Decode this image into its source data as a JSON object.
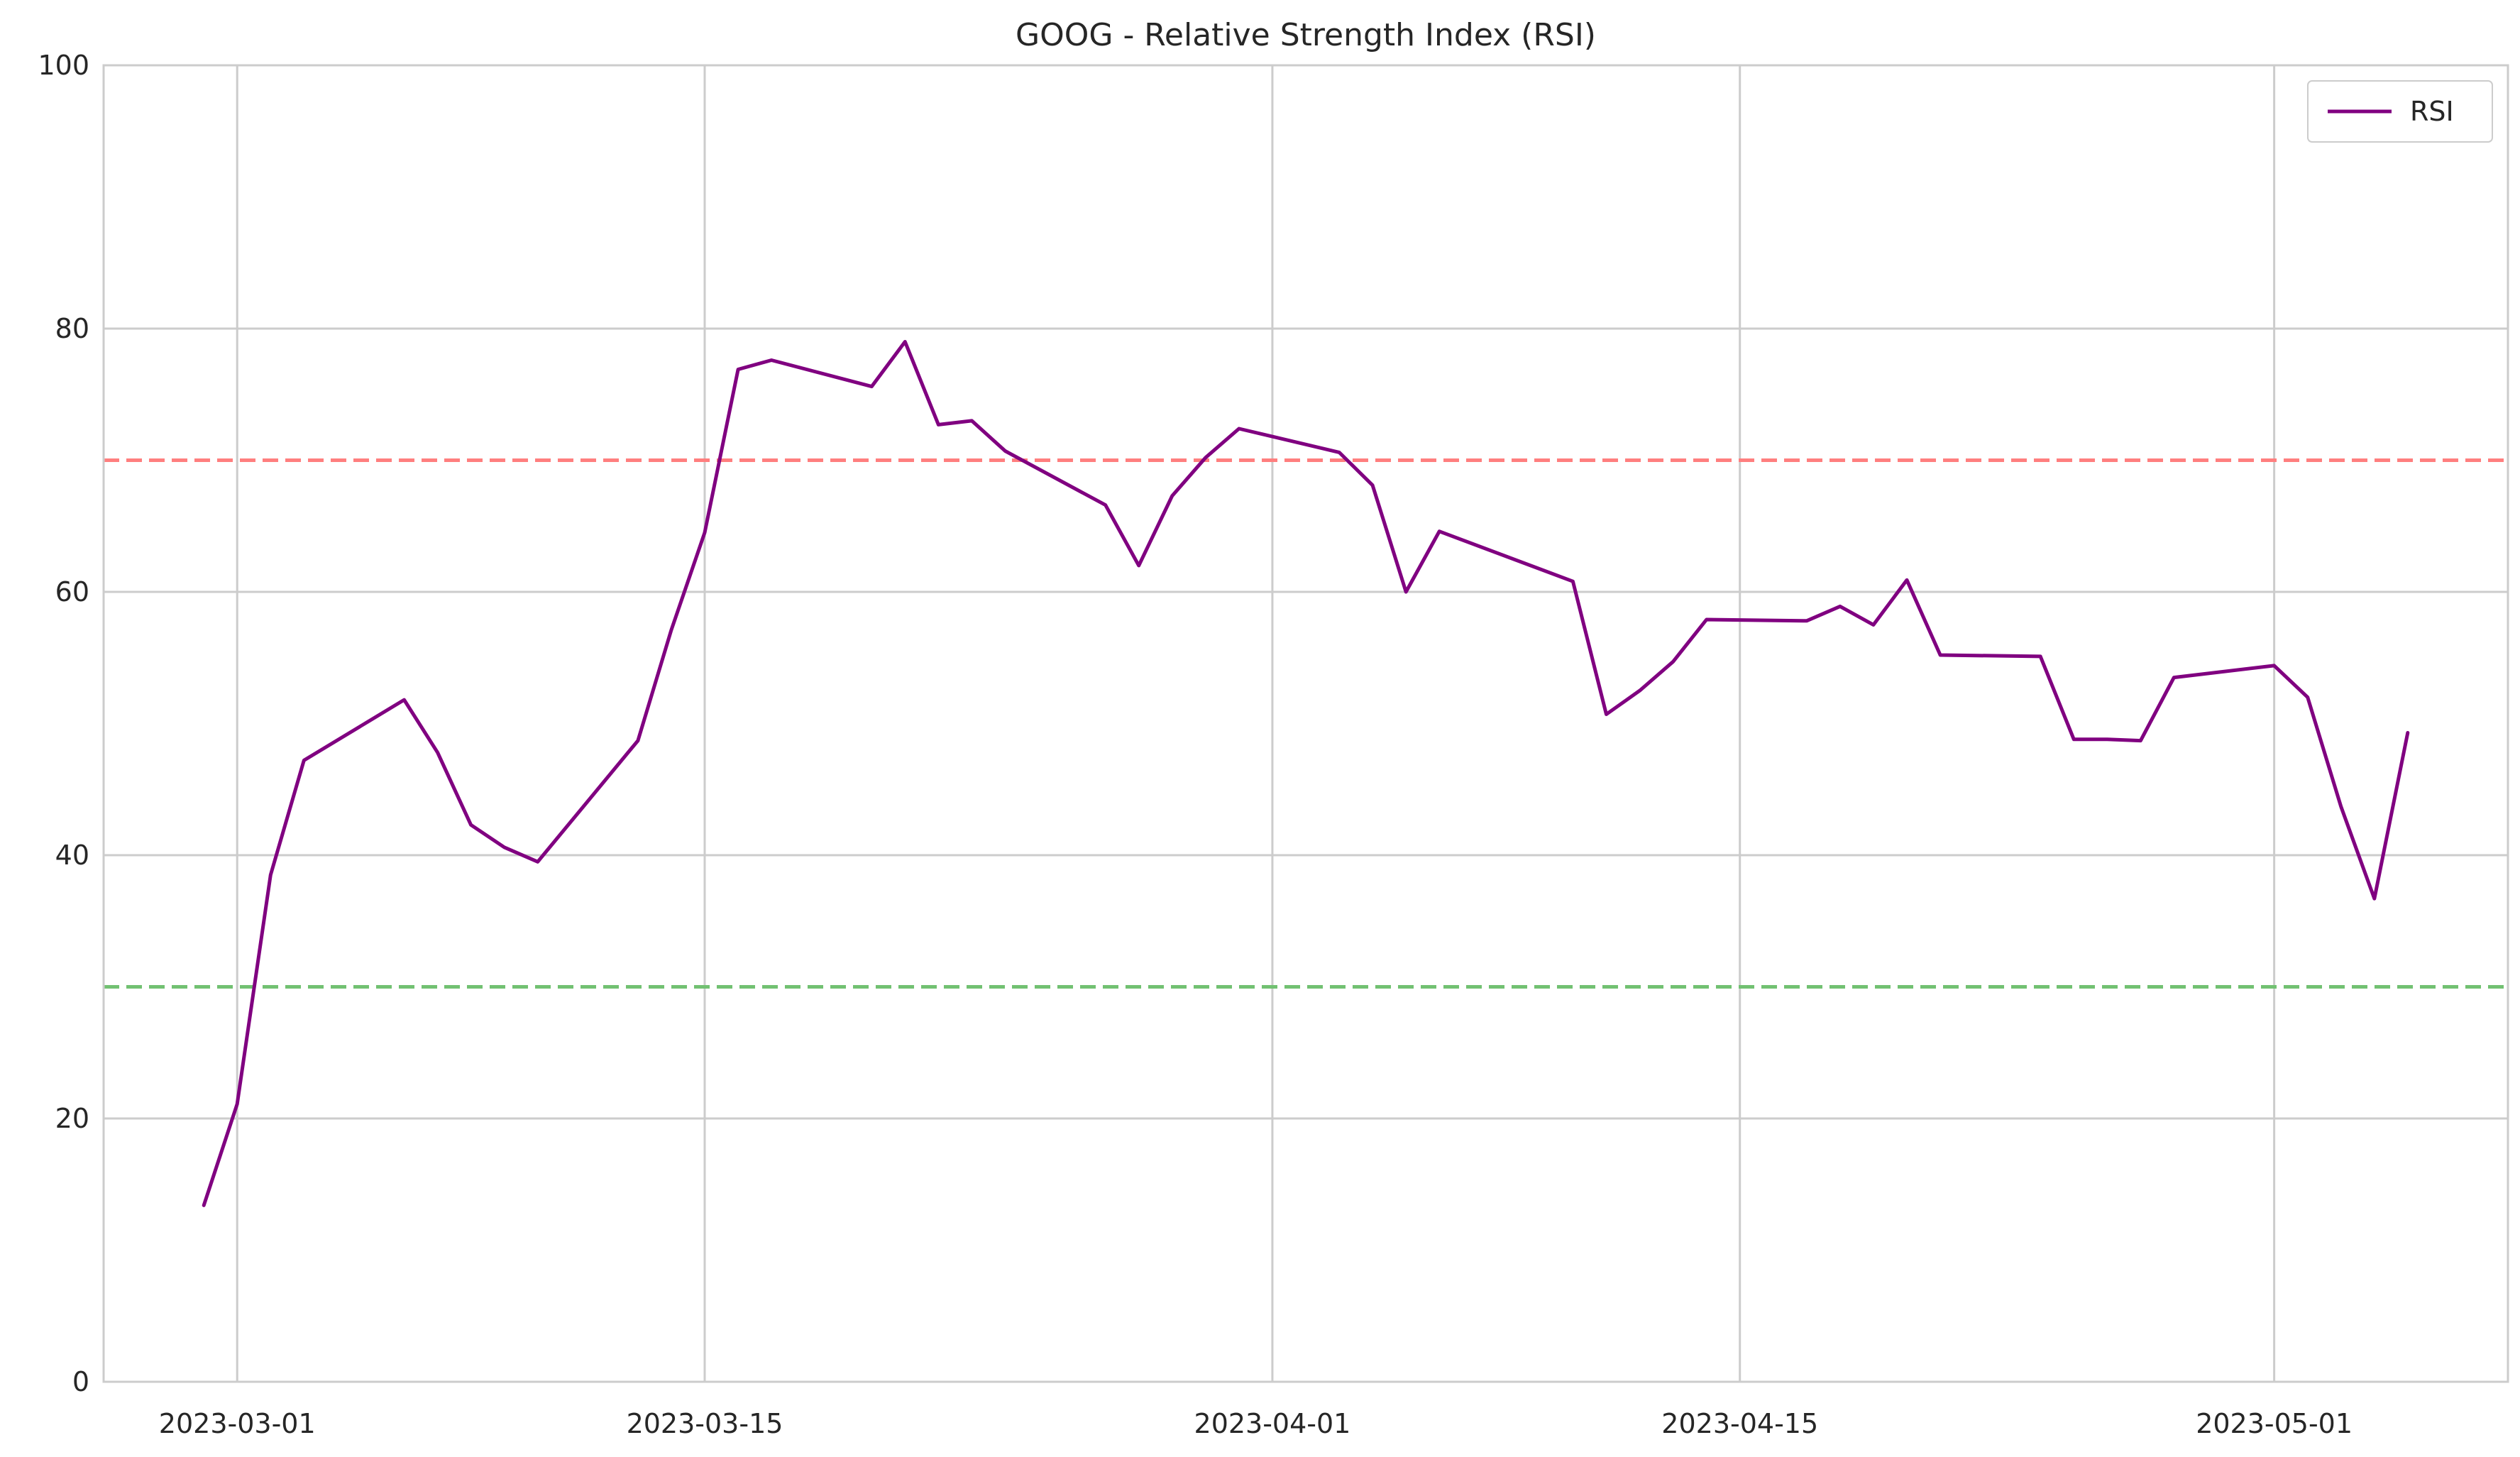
{
  "chart_data": {
    "type": "line",
    "title": "GOOG - Relative Strength Index (RSI)",
    "xlabel": "",
    "ylabel": "",
    "ylim": [
      0,
      100
    ],
    "xlim": [
      "2023-02-25",
      "2023-05-08"
    ],
    "y_ticks": [
      "0",
      "20",
      "40",
      "60",
      "80",
      "100"
    ],
    "x_ticks": [
      "2023-03-01",
      "2023-03-15",
      "2023-04-01",
      "2023-04-15",
      "2023-05-01"
    ],
    "grid": true,
    "legend": {
      "position": "top-right",
      "entries": [
        "RSI"
      ]
    },
    "series": [
      {
        "name": "RSI",
        "color": "#800080",
        "x": [
          "2023-02-28",
          "2023-03-01",
          "2023-03-02",
          "2023-03-03",
          "2023-03-06",
          "2023-03-07",
          "2023-03-08",
          "2023-03-09",
          "2023-03-10",
          "2023-03-13",
          "2023-03-14",
          "2023-03-15",
          "2023-03-16",
          "2023-03-17",
          "2023-03-20",
          "2023-03-21",
          "2023-03-22",
          "2023-03-23",
          "2023-03-24",
          "2023-03-27",
          "2023-03-28",
          "2023-03-29",
          "2023-03-30",
          "2023-03-31",
          "2023-04-03",
          "2023-04-04",
          "2023-04-05",
          "2023-04-06",
          "2023-04-10",
          "2023-04-11",
          "2023-04-12",
          "2023-04-13",
          "2023-04-14",
          "2023-04-17",
          "2023-04-18",
          "2023-04-19",
          "2023-04-20",
          "2023-04-21",
          "2023-04-24",
          "2023-04-25",
          "2023-04-26",
          "2023-04-27",
          "2023-04-28",
          "2023-05-01",
          "2023-05-02",
          "2023-05-03",
          "2023-05-04",
          "2023-05-05"
        ],
        "values": [
          13.4,
          21.1,
          38.5,
          47.2,
          51.8,
          47.8,
          42.3,
          40.6,
          39.5,
          48.7,
          57.1,
          64.5,
          76.9,
          77.6,
          75.6,
          79.0,
          72.7,
          73.0,
          70.7,
          66.6,
          62.0,
          67.3,
          70.2,
          72.4,
          70.6,
          68.1,
          60.0,
          64.6,
          60.8,
          50.7,
          52.5,
          54.7,
          57.9,
          57.8,
          58.9,
          57.5,
          60.9,
          55.2,
          55.1,
          48.8,
          48.8,
          48.7,
          53.5,
          54.4,
          52.0,
          43.7,
          36.7,
          49.3
        ]
      }
    ],
    "reference_lines": [
      {
        "y": 70,
        "color": "#ff7f7f",
        "style": "dashed"
      },
      {
        "y": 30,
        "color": "#72c172",
        "style": "dashed"
      }
    ]
  }
}
